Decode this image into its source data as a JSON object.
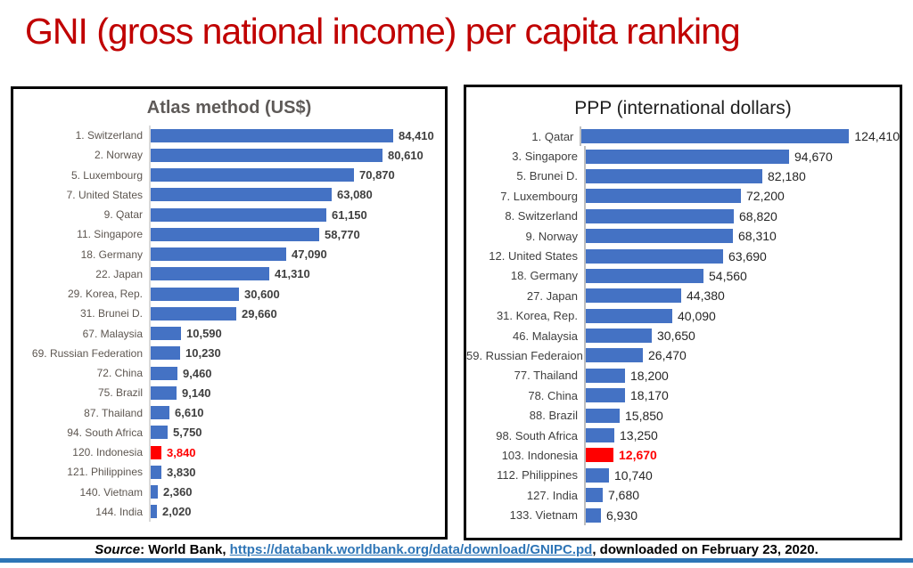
{
  "page": {
    "title": "GNI (gross national income) per capita ranking",
    "title_color": "#C00000",
    "accent_line_color": "#2E75B6"
  },
  "footer": {
    "source_label": "Source",
    "text_before_link": ": World Bank, ",
    "link_text": "https://databank.worldbank.org/data/download/GNIPC.pd",
    "text_after_link": ", downloaded on February 23, 2020.",
    "link_color": "#2E75B6"
  },
  "chart_data": [
    {
      "type": "bar",
      "orientation": "horizontal",
      "title": "Atlas method (US$)",
      "categories": [
        "1. Switzerland",
        "2. Norway",
        "5. Luxembourg",
        "7. United States",
        "9. Qatar",
        "11. Singapore",
        "18. Germany",
        "22. Japan",
        "29. Korea, Rep.",
        "31. Brunei D.",
        "67. Malaysia",
        "69. Russian Federation",
        "72. China",
        "75. Brazil",
        "87. Thailand",
        "94. South Africa",
        "120. Indonesia",
        "121. Philippines",
        "140. Vietnam",
        "144. India"
      ],
      "values": [
        84410,
        80610,
        70870,
        63080,
        61150,
        58770,
        47090,
        41310,
        30600,
        29660,
        10590,
        10230,
        9460,
        9140,
        6610,
        5750,
        3840,
        3830,
        2360,
        2020
      ],
      "value_labels": [
        "84,410",
        "80,610",
        "70,870",
        "63,080",
        "61,150",
        "58,770",
        "47,090",
        "41,310",
        "30,600",
        "29,660",
        "10,590",
        "10,230",
        "9,460",
        "9,140",
        "6,610",
        "5,750",
        "3,840",
        "3,830",
        "2,360",
        "2,020"
      ],
      "highlight_index": 16,
      "highlighted_category": "120. Indonesia",
      "bar_color": "#4472C4",
      "highlight_color": "#FF0000",
      "xmax": 84410,
      "grid": false,
      "legend": "none"
    },
    {
      "type": "bar",
      "orientation": "horizontal",
      "title": "PPP (international dollars)",
      "categories": [
        "1. Qatar",
        "3. Singapore",
        "5. Brunei D.",
        "7. Luxembourg",
        "8. Switzerland",
        "9. Norway",
        "12. United States",
        "18. Germany",
        "27. Japan",
        "31. Korea, Rep.",
        "46. Malaysia",
        "59. Russian Federaion",
        "77. Thailand",
        "78. China",
        "88. Brazil",
        "98. South Africa",
        "103. Indonesia",
        "112. Philippines",
        "127. India",
        "133. Vietnam"
      ],
      "values": [
        124410,
        94670,
        82180,
        72200,
        68820,
        68310,
        63690,
        54560,
        44380,
        40090,
        30650,
        26470,
        18200,
        18170,
        15850,
        13250,
        12670,
        10740,
        7680,
        6930
      ],
      "value_labels": [
        "124,410",
        "94,670",
        "82,180",
        "72,200",
        "68,820",
        "68,310",
        "63,690",
        "54,560",
        "44,380",
        "40,090",
        "30,650",
        "26,470",
        "18,200",
        "18,170",
        "15,850",
        "13,250",
        "12,670",
        "10,740",
        "7,680",
        "6,930"
      ],
      "highlight_index": 16,
      "highlighted_category": "103. Indonesia",
      "bar_color": "#4472C4",
      "highlight_color": "#FF0000",
      "xmax": 124410,
      "grid": false,
      "legend": "none"
    }
  ]
}
